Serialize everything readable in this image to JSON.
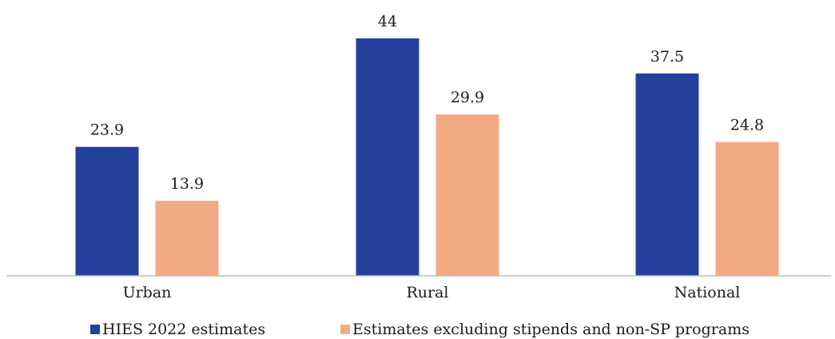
{
  "chart_data": {
    "type": "bar",
    "categories": [
      "Urban",
      "Rural",
      "National"
    ],
    "series": [
      {
        "name": "HIES 2022 estimates",
        "values": [
          23.9,
          44,
          37.5
        ],
        "color": "#25409b"
      },
      {
        "name": "Estimates excluding stipends and non-SP programs",
        "values": [
          13.9,
          29.9,
          24.8
        ],
        "color": "#f2aa84"
      }
    ],
    "ylim": [
      0,
      50
    ],
    "grid": false,
    "legend": "bottom",
    "axis_color": "#bfbfbf"
  }
}
